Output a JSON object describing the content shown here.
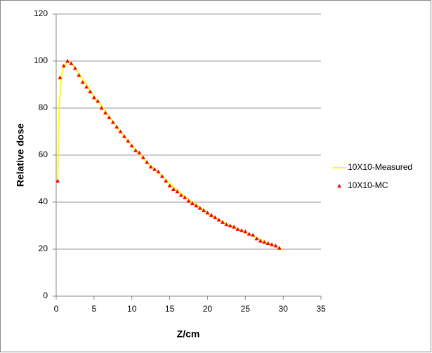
{
  "chart_data": {
    "type": "scatter",
    "xlabel": "Z/cm",
    "ylabel": "Relative dose",
    "xlim": [
      0,
      35
    ],
    "xticks": [
      0,
      5,
      10,
      15,
      20,
      25,
      30,
      35
    ],
    "ylim": [
      0,
      120
    ],
    "yticks": [
      0,
      20,
      40,
      60,
      80,
      100,
      120
    ],
    "grid": true,
    "legend": "right",
    "series": [
      {
        "name": "10X10-Measured",
        "type": "line",
        "color": "#ffff00",
        "x": [
          0.2,
          0.4,
          0.6,
          0.8,
          1.0,
          1.5,
          2.0,
          3,
          4,
          5,
          6,
          8,
          10,
          12,
          14,
          16,
          18,
          20,
          22,
          24,
          26,
          28,
          30
        ],
        "values": [
          49,
          80,
          90,
          95,
          97.5,
          99.5,
          99,
          95,
          90,
          85,
          81,
          72,
          64,
          57,
          51,
          45,
          40,
          35.5,
          31.5,
          28.5,
          25.5,
          22.5,
          19.5
        ]
      },
      {
        "name": "10X10-MC",
        "type": "scatter",
        "color": "#ff0000",
        "x": [
          0.2,
          0.5,
          1.0,
          1.5,
          2.0,
          2.5,
          3.0,
          3.5,
          4.0,
          4.5,
          5.0,
          5.5,
          6.0,
          6.5,
          7.0,
          7.5,
          8.0,
          8.5,
          9.0,
          9.5,
          10.0,
          10.5,
          11.0,
          11.5,
          12.0,
          12.5,
          13.0,
          13.5,
          14.0,
          14.5,
          15.0,
          15.5,
          16.0,
          16.5,
          17.0,
          17.5,
          18.0,
          18.5,
          19.0,
          19.5,
          20.0,
          20.5,
          21.0,
          21.5,
          22.0,
          22.5,
          23.0,
          23.5,
          24.0,
          24.5,
          25.0,
          25.5,
          26.0,
          26.5,
          27.0,
          27.5,
          28.0,
          28.5,
          29.0,
          29.5
        ],
        "values": [
          49,
          93,
          98,
          100,
          99,
          97,
          94,
          91,
          89,
          87,
          84.5,
          83,
          80,
          78,
          76,
          74,
          72,
          70,
          68,
          66,
          64,
          62,
          61,
          59,
          57,
          55,
          54,
          53,
          51,
          49,
          47,
          45.5,
          44.5,
          43,
          42,
          40.5,
          39.5,
          38.5,
          37.5,
          36.5,
          35.5,
          34.5,
          33.5,
          32.5,
          31.5,
          30.5,
          30,
          29.5,
          28.5,
          28,
          27.5,
          26.5,
          26,
          24.5,
          23.5,
          23,
          22.5,
          22,
          21.5,
          20.5
        ]
      }
    ]
  }
}
